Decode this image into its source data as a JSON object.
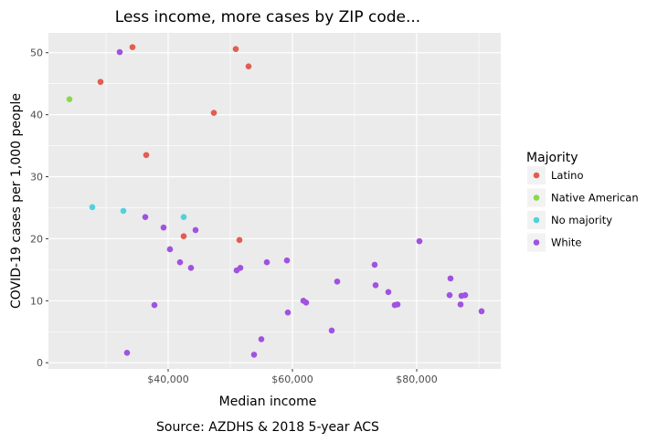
{
  "chart_data": {
    "type": "scatter",
    "title": "Less income, more cases by ZIP code...",
    "xlabel": "Median income",
    "ylabel": "COVID-19 cases per 1,000 people",
    "caption": "Source: AZDHS & 2018 5-year ACS",
    "xlim": [
      20735,
      93529
    ],
    "ylim": [
      -1.0,
      53.2
    ],
    "xticks": [
      40000,
      60000,
      80000
    ],
    "xtick_labels": [
      "$40,000",
      "$60,000",
      "$80,000"
    ],
    "yticks": [
      0,
      10,
      20,
      30,
      40,
      50
    ],
    "ytick_labels": [
      "0",
      "10",
      "20",
      "30",
      "40",
      "50"
    ],
    "grid": true,
    "legend": {
      "title": "Majority",
      "position": "right"
    },
    "series": [
      {
        "name": "Latino",
        "color": "#e15d4f",
        "points": [
          [
            34265,
            50.9
          ],
          [
            29118,
            45.3
          ],
          [
            36471,
            33.5
          ],
          [
            47353,
            40.3
          ],
          [
            50882,
            50.6
          ],
          [
            52941,
            47.8
          ],
          [
            42500,
            20.4
          ],
          [
            51471,
            19.8
          ]
        ]
      },
      {
        "name": "Native American",
        "color": "#8ad94a",
        "points": [
          [
            24118,
            42.5
          ]
        ]
      },
      {
        "name": "No majority",
        "color": "#4fd2dc",
        "points": [
          [
            27794,
            25.1
          ],
          [
            32794,
            24.5
          ],
          [
            42500,
            23.5
          ]
        ]
      },
      {
        "name": "White",
        "color": "#a052e0",
        "points": [
          [
            32206,
            50.1
          ],
          [
            36324,
            23.5
          ],
          [
            39265,
            21.8
          ],
          [
            40294,
            18.3
          ],
          [
            41912,
            16.2
          ],
          [
            43676,
            15.3
          ],
          [
            44412,
            21.4
          ],
          [
            37794,
            9.3
          ],
          [
            33382,
            1.6
          ],
          [
            51029,
            14.9
          ],
          [
            51618,
            15.3
          ],
          [
            55882,
            16.2
          ],
          [
            59118,
            16.5
          ],
          [
            53824,
            1.3
          ],
          [
            55000,
            3.8
          ],
          [
            59265,
            8.1
          ],
          [
            61765,
            10.0
          ],
          [
            62206,
            9.7
          ],
          [
            67206,
            13.1
          ],
          [
            66324,
            5.2
          ],
          [
            73235,
            15.8
          ],
          [
            73382,
            12.5
          ],
          [
            75441,
            11.4
          ],
          [
            76471,
            9.3
          ],
          [
            76912,
            9.4
          ],
          [
            80441,
            19.6
          ],
          [
            85441,
            13.6
          ],
          [
            85294,
            10.9
          ],
          [
            87059,
            9.4
          ],
          [
            87206,
            10.8
          ],
          [
            87794,
            10.9
          ],
          [
            90441,
            8.3
          ]
        ]
      }
    ]
  }
}
